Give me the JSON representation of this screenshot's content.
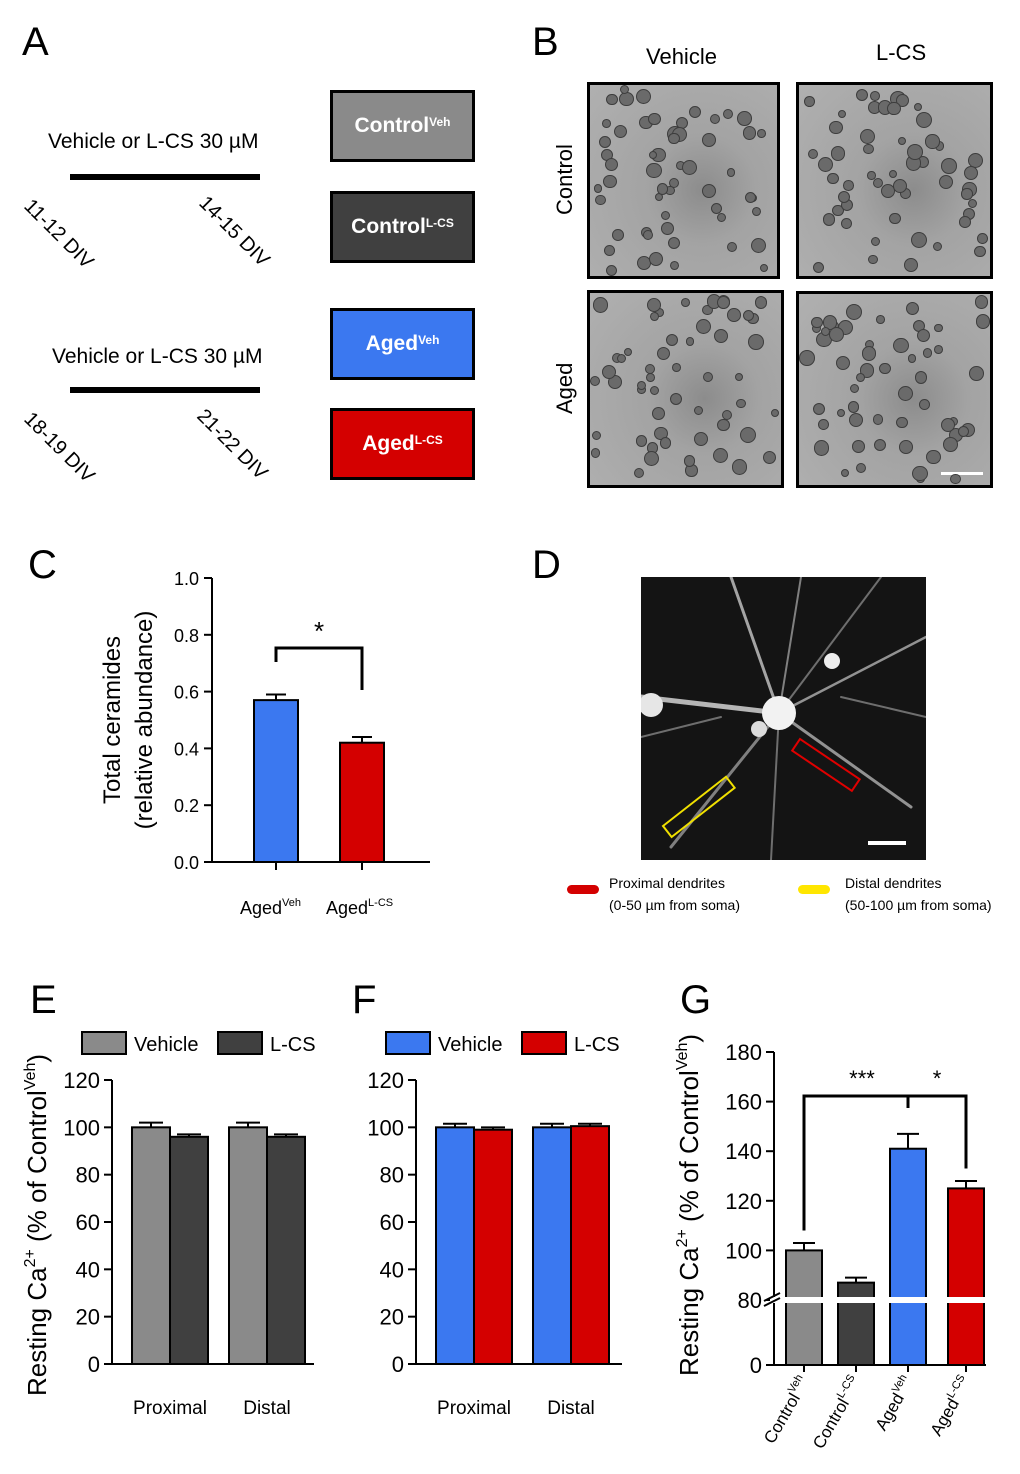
{
  "panels": {
    "a": "A",
    "b": "B",
    "c": "C",
    "d": "D",
    "e": "E",
    "f": "F",
    "g": "G"
  },
  "panel_a": {
    "timeline1": {
      "title": "Vehicle or L-CS 30 µM",
      "start": "11-12 DIV",
      "end": "14-15 DIV"
    },
    "timeline2": {
      "title": "Vehicle or L-CS 30 µM",
      "start": "18-19 DIV",
      "end": "21-22 DIV"
    },
    "boxes": [
      {
        "base": "Control",
        "sup": "Veh",
        "color": "#8a8a8a"
      },
      {
        "base": "Control",
        "sup": "L-CS",
        "color": "#404040"
      },
      {
        "base": "Aged",
        "sup": "Veh",
        "color": "#3b78f0"
      },
      {
        "base": "Aged",
        "sup": "L-CS",
        "color": "#d40000"
      }
    ]
  },
  "panel_b": {
    "col_labels": [
      "Vehicle",
      "L-CS"
    ],
    "row_labels": [
      "Control",
      "Aged"
    ]
  },
  "panel_d": {
    "legend": [
      {
        "line1": "Proximal dendrites",
        "line2": "(0-50 µm from soma)",
        "color": "#d40000"
      },
      {
        "line1": "Distal dendrites",
        "line2": "(50-100 µm from soma)",
        "color": "#ffe600"
      }
    ]
  },
  "colors": {
    "control_veh": "#8a8a8a",
    "control_lcs": "#404040",
    "aged_veh": "#3b78f0",
    "aged_lcs": "#d40000"
  },
  "chart_data": [
    {
      "panel": "C",
      "type": "bar",
      "categories": [
        {
          "base": "Aged",
          "sup": "Veh"
        },
        {
          "base": "Aged",
          "sup": "L-CS"
        }
      ],
      "values": [
        0.57,
        0.42
      ],
      "errors": [
        0.02,
        0.02
      ],
      "colors": [
        "#3b78f0",
        "#d40000"
      ],
      "ylabel": [
        "Total ceramides",
        "(relative abundance)"
      ],
      "ylim": [
        0,
        1.0
      ],
      "yticks": [
        "0.0",
        "0.2",
        "0.4",
        "0.6",
        "0.8",
        "1.0"
      ],
      "significance": [
        {
          "from": 0,
          "to": 1,
          "label": "*"
        }
      ]
    },
    {
      "panel": "E",
      "type": "bar",
      "categories": [
        "Proximal",
        "Distal"
      ],
      "series": [
        {
          "name": "Vehicle",
          "values": [
            100,
            100
          ],
          "errors": [
            2,
            2
          ],
          "color": "#8a8a8a"
        },
        {
          "name": "L-CS",
          "values": [
            96,
            96
          ],
          "errors": [
            1,
            1
          ],
          "color": "#404040"
        }
      ],
      "ylabel": {
        "base": "Resting Ca",
        "sup": "2+",
        "mid": " (% of Control",
        "sup2": "Veh",
        "end": ")"
      },
      "ylim": [
        0,
        120
      ],
      "yticks": [
        "0",
        "20",
        "40",
        "60",
        "80",
        "100",
        "120"
      ],
      "legend": "top"
    },
    {
      "panel": "F",
      "type": "bar",
      "categories": [
        "Proximal",
        "Distal"
      ],
      "series": [
        {
          "name": "Vehicle",
          "values": [
            100,
            100
          ],
          "errors": [
            1.5,
            1.5
          ],
          "color": "#3b78f0"
        },
        {
          "name": "L-CS",
          "values": [
            99,
            100.5
          ],
          "errors": [
            1,
            1
          ],
          "color": "#d40000"
        }
      ],
      "ylim": [
        0,
        120
      ],
      "yticks": [
        "0",
        "20",
        "40",
        "60",
        "80",
        "100",
        "120"
      ],
      "legend": "top"
    },
    {
      "panel": "G",
      "type": "bar",
      "categories": [
        {
          "base": "Control",
          "sup": "Veh"
        },
        {
          "base": "Control",
          "sup": "L-CS"
        },
        {
          "base": "Aged",
          "sup": "Veh"
        },
        {
          "base": "Aged",
          "sup": "L-CS"
        }
      ],
      "values": [
        100,
        87,
        141,
        125
      ],
      "errors": [
        3,
        2,
        6,
        3
      ],
      "colors": [
        "#8a8a8a",
        "#404040",
        "#3b78f0",
        "#d40000"
      ],
      "ylabel": {
        "base": "Resting Ca",
        "sup": "2+",
        "mid": " (% of Control",
        "sup2": "Veh",
        "end": ")"
      },
      "ylim": [
        0,
        180
      ],
      "axis_break": 80,
      "yticks": [
        "0",
        "80",
        "100",
        "120",
        "140",
        "160",
        "180"
      ],
      "significance": [
        {
          "from": 0,
          "to": 2,
          "label": "***"
        },
        {
          "from": 2,
          "to": 3,
          "label": "*"
        }
      ]
    }
  ]
}
